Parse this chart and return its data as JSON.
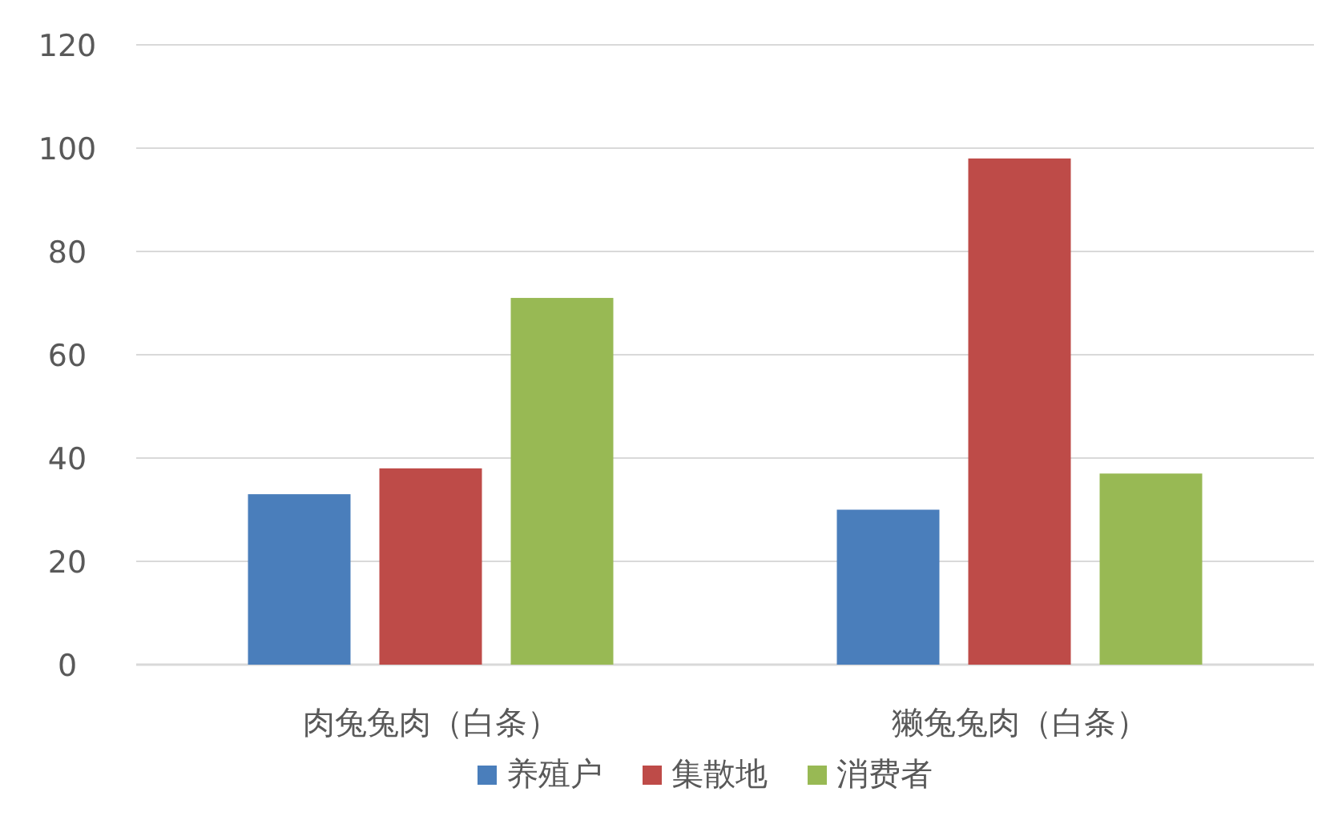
{
  "chart_data": {
    "type": "bar",
    "categories": [
      "肉兔兔肉（白条）",
      "獭兔兔肉（白条）"
    ],
    "series": [
      {
        "name": "养殖户",
        "color": "#4a7ebb",
        "values": [
          33,
          30
        ]
      },
      {
        "name": "集散地",
        "color": "#be4b48",
        "values": [
          38,
          98
        ]
      },
      {
        "name": "消费者",
        "color": "#98b954",
        "values": [
          71,
          37
        ]
      }
    ],
    "ylim": [
      0,
      120
    ],
    "yticks": [
      0,
      20,
      40,
      60,
      80,
      100,
      120
    ],
    "grid": "y",
    "legend": "bottom"
  }
}
